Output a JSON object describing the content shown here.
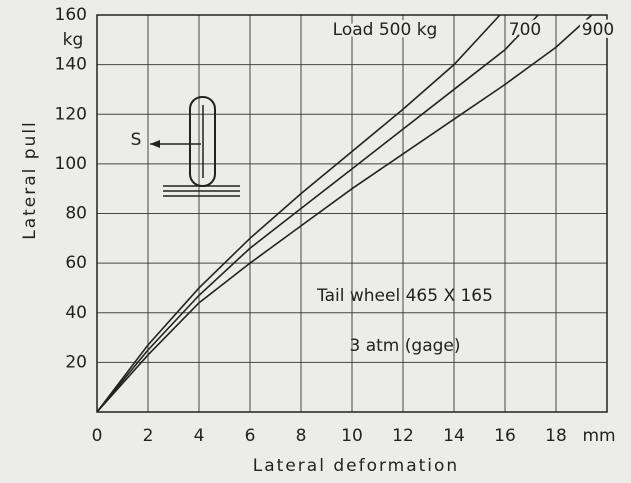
{
  "chart_data": {
    "type": "line",
    "x_label": "Lateral deformation",
    "y_label": "Lateral pull",
    "x_unit": "mm",
    "y_unit": "kg",
    "xlim": [
      0,
      20
    ],
    "ylim": [
      0,
      160
    ],
    "xticks": [
      0,
      2,
      4,
      6,
      8,
      10,
      12,
      14,
      16,
      18
    ],
    "yticks": [
      20,
      40,
      60,
      80,
      100,
      120,
      140,
      160
    ],
    "grid": true,
    "series": [
      {
        "name": "Load 500 kg",
        "color": "#222222",
        "x": [
          0,
          2,
          4,
          6,
          8,
          10,
          12,
          14,
          15.8
        ],
        "values": [
          0,
          27,
          50,
          70,
          88,
          105,
          122,
          140,
          160
        ]
      },
      {
        "name": "700",
        "color": "#222222",
        "x": [
          0,
          2,
          4,
          6,
          8,
          10,
          12,
          14,
          16,
          17.3
        ],
        "values": [
          0,
          25,
          47,
          66,
          82,
          98,
          114,
          130,
          146,
          160
        ]
      },
      {
        "name": "900",
        "color": "#222222",
        "x": [
          0,
          2,
          4,
          6,
          8,
          10,
          12,
          14,
          16,
          18,
          19.4
        ],
        "values": [
          0,
          23,
          44,
          60,
          75,
          90,
          104,
          118,
          132,
          147,
          160
        ]
      }
    ],
    "annotations": [
      "Tail wheel 465 X 165",
      "3 atm (gage)",
      "S"
    ]
  }
}
